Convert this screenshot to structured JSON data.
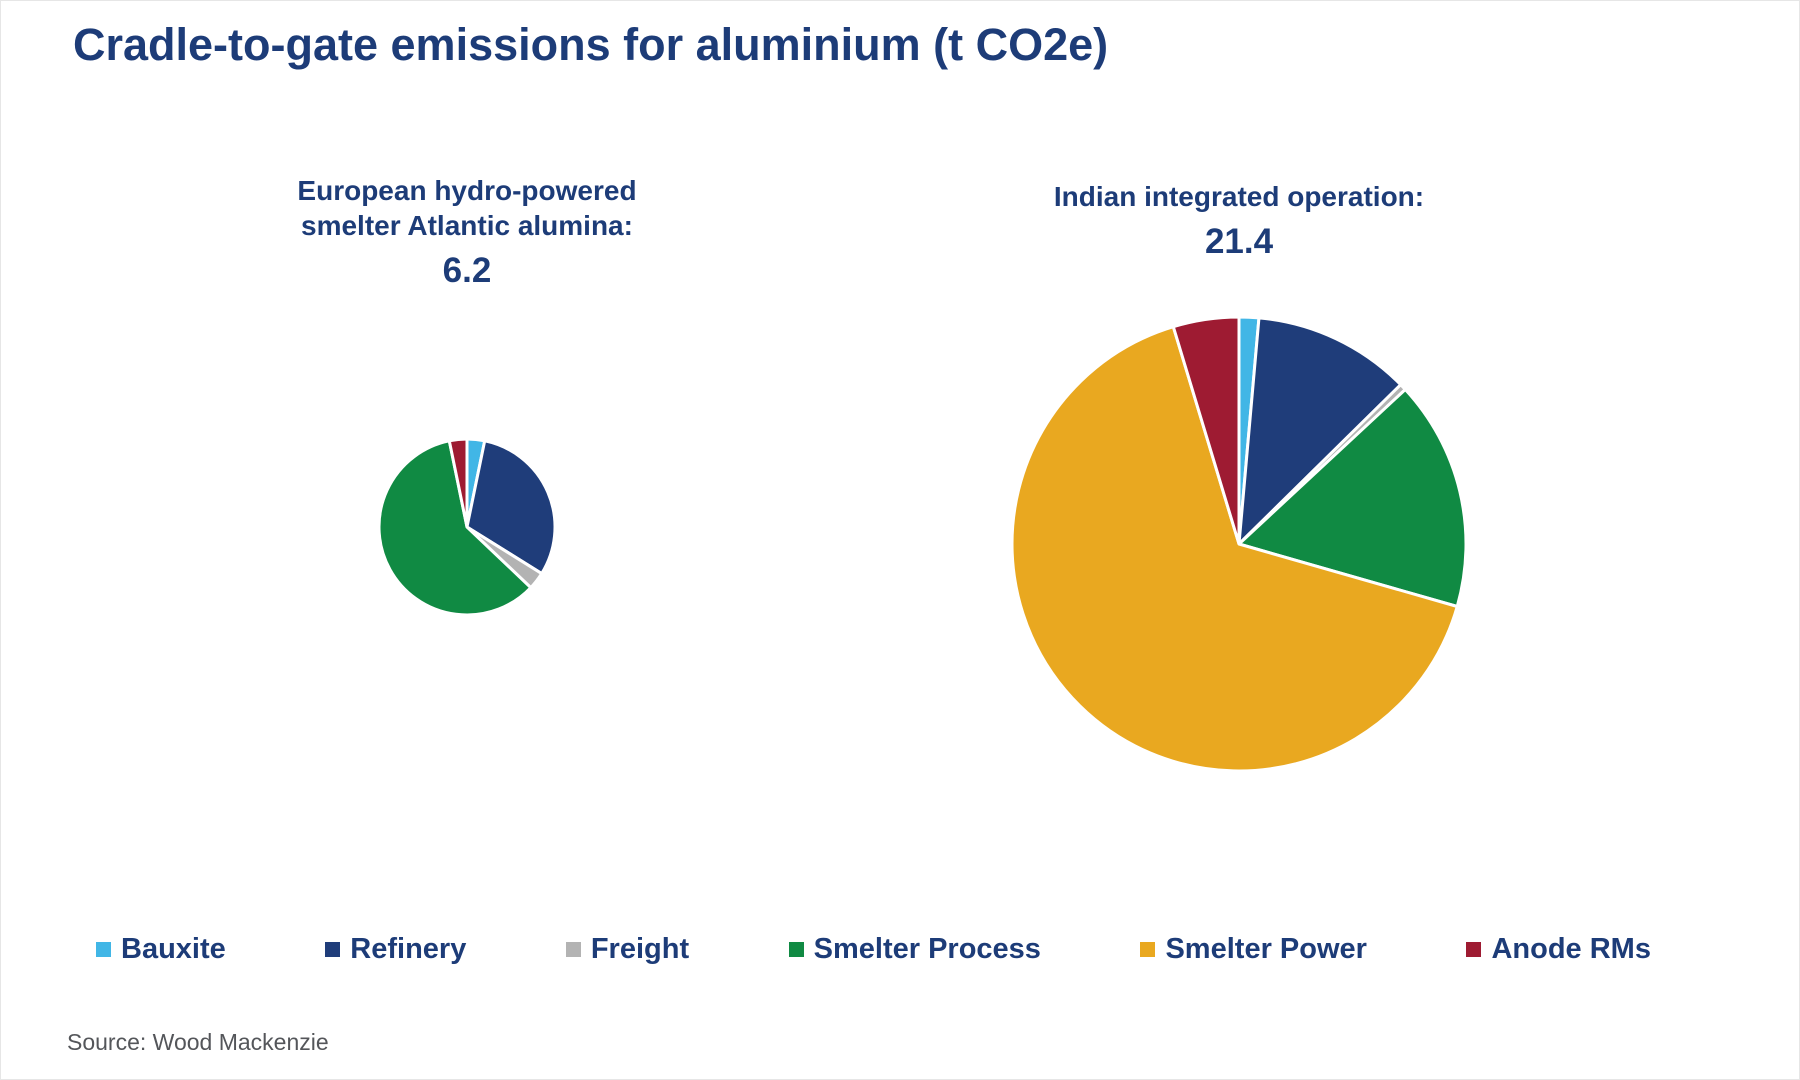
{
  "title": "Cradle-to-gate emissions for aluminium (t CO2e)",
  "source": "Source: Wood Mackenzie",
  "colors": {
    "heading_navy": "#1d3c78",
    "source_gray": "#54565a",
    "slice_stroke": "#ffffff"
  },
  "legend": {
    "items": [
      {
        "label": "Bauxite",
        "color": "#41b6e6"
      },
      {
        "label": "Refinery",
        "color": "#1f3d7a"
      },
      {
        "label": "Freight",
        "color": "#b3b3b3"
      },
      {
        "label": "Smelter Process",
        "color": "#108a43"
      },
      {
        "label": "Smelter Power",
        "color": "#e9a820"
      },
      {
        "label": "Anode RMs",
        "color": "#9e1b32"
      }
    ]
  },
  "chart_data": [
    {
      "type": "pie",
      "title": "European hydro-powered smelter Atlantic alumina:",
      "total_label": "6.2",
      "total": 6.2,
      "categories": [
        "Bauxite",
        "Refinery",
        "Freight",
        "Smelter Process",
        "Smelter Power",
        "Anode RMs"
      ],
      "values": [
        0.2,
        1.9,
        0.2,
        3.7,
        0.0,
        0.2
      ],
      "radius_px": 88,
      "start_angle_deg": 0,
      "direction": "clockwise",
      "legend_position": "bottom-shared"
    },
    {
      "type": "pie",
      "title": "Indian integrated operation:",
      "total_label": "21.4",
      "total": 21.4,
      "categories": [
        "Bauxite",
        "Refinery",
        "Freight",
        "Smelter Process",
        "Smelter Power",
        "Anode RMs"
      ],
      "values": [
        0.3,
        2.4,
        0.1,
        3.5,
        14.1,
        1.0
      ],
      "radius_px": 227,
      "start_angle_deg": 0,
      "direction": "clockwise",
      "legend_position": "bottom-shared"
    }
  ]
}
